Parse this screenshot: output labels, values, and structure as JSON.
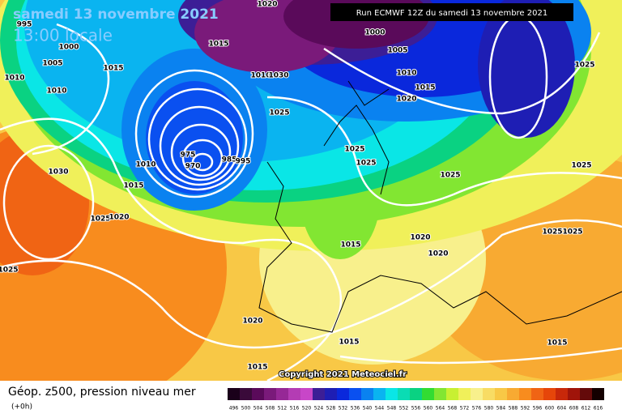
{
  "header": {
    "date": "samedi 13 novembre 2021",
    "time": "13:00 locale",
    "run": "Run ECMWF 12Z du samedi 13 novembre 2021"
  },
  "copyright": "Copyright 2021 Meteociel.fr",
  "footer": {
    "title": "Géop. z500, pression niveau mer",
    "lead": "(+0h)"
  },
  "isobar_labels": [
    "1020",
    "995",
    "1000",
    "1005",
    "1010",
    "1015",
    "1010",
    "1015",
    "1010",
    "1030",
    "1025",
    "1000",
    "1005",
    "1010",
    "1015",
    "1020",
    "1025",
    "1025",
    "1025",
    "1025",
    "1025",
    "1030",
    "1015",
    "1025",
    "1020",
    "1010",
    "975",
    "970",
    "985",
    "995",
    "1015",
    "1020",
    "1020",
    "1025",
    "1025",
    "1025",
    "1020",
    "1015",
    "1015",
    "1015"
  ],
  "colorbar": [
    {
      "value": 496,
      "color": "#1a001a"
    },
    {
      "value": 500,
      "color": "#3a0a3a"
    },
    {
      "value": 504,
      "color": "#5a0a5a"
    },
    {
      "value": 508,
      "color": "#7a1a7a"
    },
    {
      "value": 512,
      "color": "#962896"
    },
    {
      "value": 516,
      "color": "#b43cb4"
    },
    {
      "value": 520,
      "color": "#c846c8"
    },
    {
      "value": 524,
      "color": "#3c1e96"
    },
    {
      "value": 528,
      "color": "#1e1eb4"
    },
    {
      "value": 532,
      "color": "#0a28dc"
    },
    {
      "value": 536,
      "color": "#0a50f0"
    },
    {
      "value": 540,
      "color": "#0a82f0"
    },
    {
      "value": 544,
      "color": "#0ab4f0"
    },
    {
      "value": 548,
      "color": "#0ae6e6"
    },
    {
      "value": 552,
      "color": "#0adcb4"
    },
    {
      "value": 556,
      "color": "#0ad282"
    },
    {
      "value": 560,
      "color": "#32dc32"
    },
    {
      "value": 564,
      "color": "#82e632"
    },
    {
      "value": 568,
      "color": "#c8f032"
    },
    {
      "value": 572,
      "color": "#f0f05a"
    },
    {
      "value": 576,
      "color": "#f8f08c"
    },
    {
      "value": 580,
      "color": "#f8dc64"
    },
    {
      "value": 584,
      "color": "#f8c846"
    },
    {
      "value": 588,
      "color": "#f8aa32"
    },
    {
      "value": 592,
      "color": "#f88c1e"
    },
    {
      "value": 596,
      "color": "#f06414"
    },
    {
      "value": 600,
      "color": "#e6460a"
    },
    {
      "value": 604,
      "color": "#c8280a"
    },
    {
      "value": 608,
      "color": "#a0140a"
    },
    {
      "value": 612,
      "color": "#640a0a"
    },
    {
      "value": 616,
      "color": "#140000"
    }
  ]
}
